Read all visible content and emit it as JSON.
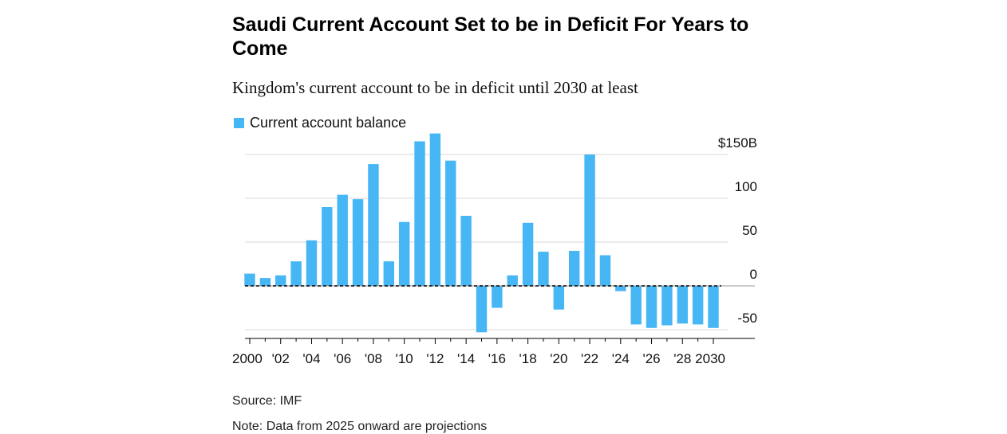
{
  "header": {
    "title": "Saudi Current Account Set to be in Deficit For Years to Come",
    "subtitle": "Kingdom's current account to be in deficit until 2030 at least"
  },
  "footer": {
    "source": "Source: IMF",
    "note": "Note: Data from 2025 onward are projections"
  },
  "colors": {
    "bar": "#47b6f5",
    "grid": "#d9d9d9",
    "text": "#111111"
  },
  "chart_data": {
    "type": "bar",
    "series": [
      {
        "name": "Current account balance",
        "values": [
          14,
          9,
          12,
          28,
          52,
          90,
          104,
          99,
          139,
          28,
          73,
          165,
          174,
          143,
          80,
          -53,
          -25,
          12,
          72,
          39,
          -27,
          40,
          150,
          35,
          -6,
          -44,
          -48,
          -45,
          -43,
          -44,
          -48
        ]
      }
    ],
    "x": [
      2000,
      2001,
      2002,
      2003,
      2004,
      2005,
      2006,
      2007,
      2008,
      2009,
      2010,
      2011,
      2012,
      2013,
      2014,
      2015,
      2016,
      2017,
      2018,
      2019,
      2020,
      2021,
      2022,
      2023,
      2024,
      2025,
      2026,
      2027,
      2028,
      2029,
      2030
    ],
    "x_tick_labels": [
      {
        "year": 2000,
        "label": "2000"
      },
      {
        "year": 2002,
        "label": "'02"
      },
      {
        "year": 2004,
        "label": "'04"
      },
      {
        "year": 2006,
        "label": "'06"
      },
      {
        "year": 2008,
        "label": "'08"
      },
      {
        "year": 2010,
        "label": "'10"
      },
      {
        "year": 2012,
        "label": "'12"
      },
      {
        "year": 2014,
        "label": "'14"
      },
      {
        "year": 2016,
        "label": "'16"
      },
      {
        "year": 2018,
        "label": "'18"
      },
      {
        "year": 2020,
        "label": "'20"
      },
      {
        "year": 2022,
        "label": "'22"
      },
      {
        "year": 2024,
        "label": "'24"
      },
      {
        "year": 2026,
        "label": "'26"
      },
      {
        "year": 2028,
        "label": "'28"
      },
      {
        "year": 2030,
        "label": "2030"
      }
    ],
    "y_ticks": [
      {
        "value": 150,
        "label": "$150B"
      },
      {
        "value": 100,
        "label": "100"
      },
      {
        "value": 50,
        "label": "50"
      },
      {
        "value": 0,
        "label": "0"
      },
      {
        "value": -50,
        "label": "-50"
      }
    ],
    "ylim": [
      -60,
      170
    ],
    "grid": true,
    "zero_line": "dashed",
    "legend_position": "top-left",
    "xlabel": "",
    "ylabel": ""
  }
}
